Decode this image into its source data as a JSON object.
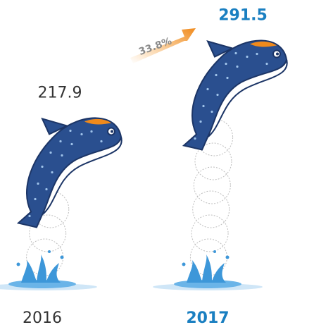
{
  "chart_data": {
    "type": "pictorial",
    "categories": [
      "2016",
      "2017"
    ],
    "values": [
      217.9,
      291.5
    ],
    "colors": [
      "#333333",
      "#1a7fc1"
    ],
    "annotation": "33.8%"
  }
}
